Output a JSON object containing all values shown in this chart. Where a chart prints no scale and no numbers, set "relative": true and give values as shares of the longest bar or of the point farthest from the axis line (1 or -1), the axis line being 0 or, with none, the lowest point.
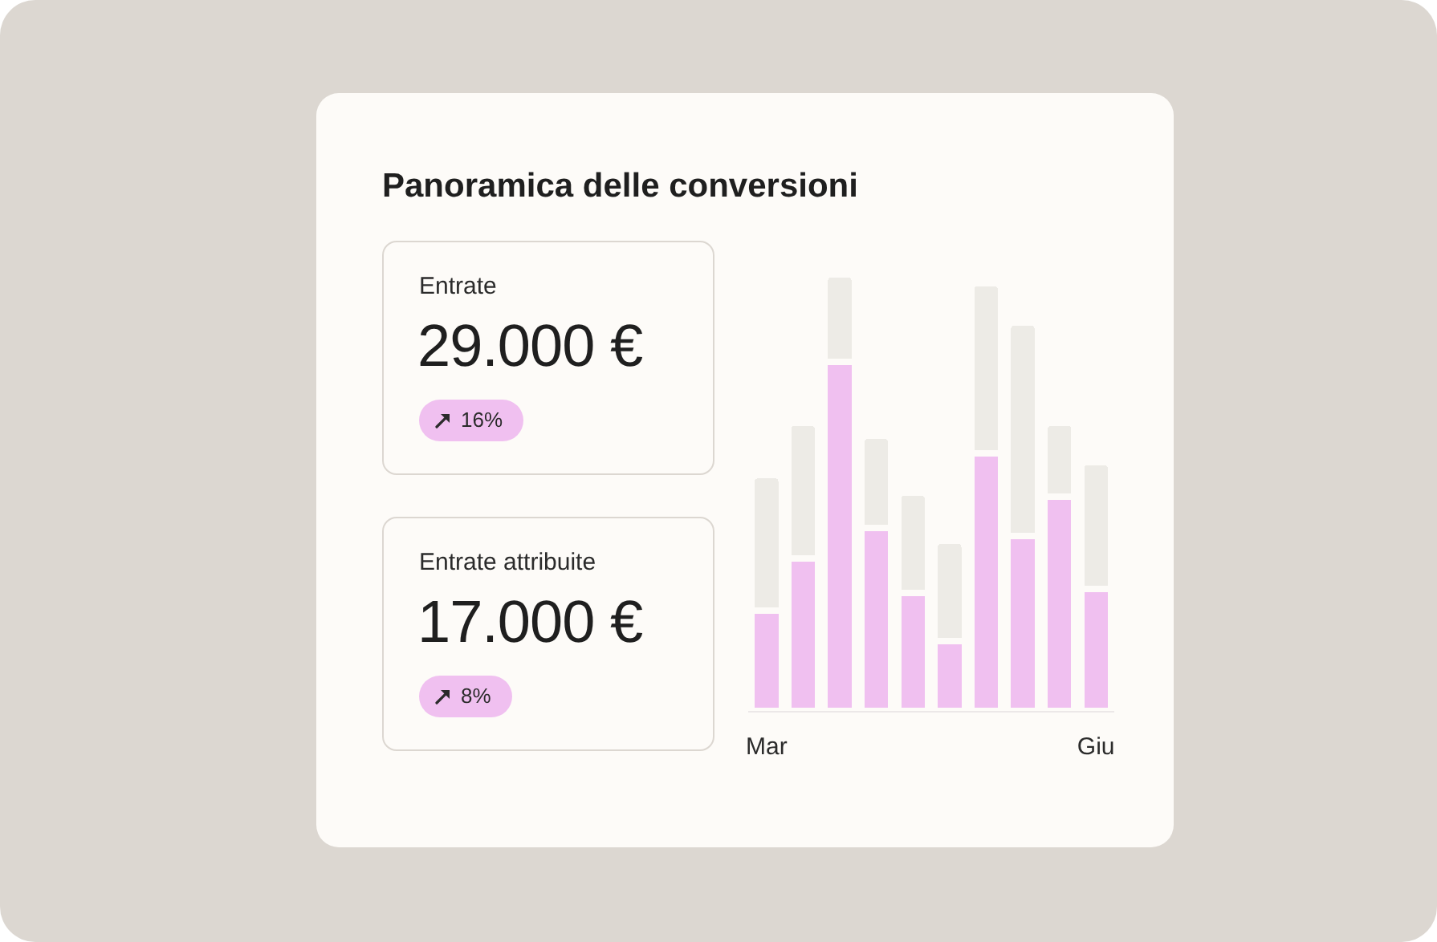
{
  "chart_data": [
    {
      "type": "other",
      "title": "Entrate",
      "annotations": [
        "29.000 €",
        "16%"
      ]
    },
    {
      "type": "other",
      "title": "Entrate attribuite",
      "annotations": [
        "17.000 €",
        "8%"
      ]
    },
    {
      "type": "bar",
      "title": "Panoramica delle conversioni",
      "relative": true,
      "stacked": true,
      "categories": [
        "Mar",
        null,
        null,
        null,
        null,
        null,
        null,
        null,
        null,
        "Giu"
      ],
      "series": [
        {
          "color": "#f0c0f0",
          "values": [
            0.23,
            0.35,
            0.8,
            0.42,
            0.27,
            0.16,
            0.59,
            0.4,
            0.49,
            0.28
          ]
        },
        {
          "color": "#edebe6",
          "values": [
            0.31,
            0.31,
            0.2,
            0.21,
            0.23,
            0.23,
            0.39,
            0.49,
            0.17,
            0.29
          ]
        }
      ]
    }
  ]
}
